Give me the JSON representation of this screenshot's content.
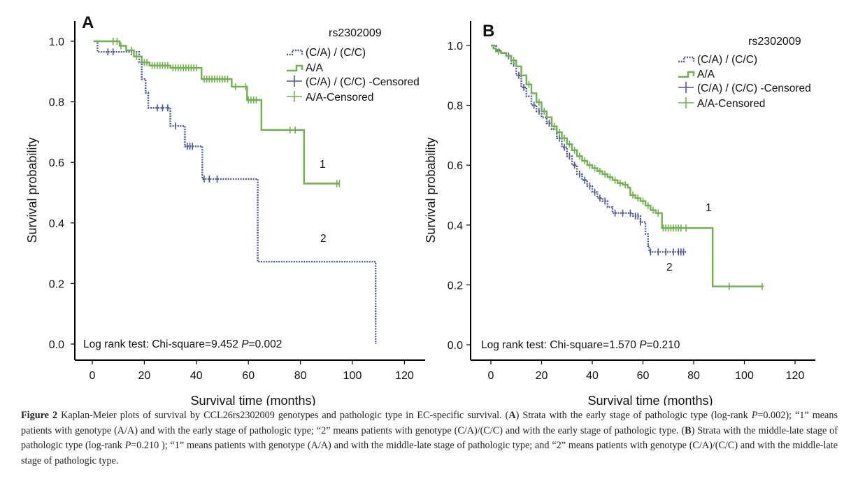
{
  "colors": {
    "group_ca_cc": "#4b55a6",
    "group_aa": "#6cb34a"
  },
  "chart_data": [
    {
      "type": "line",
      "panel_label": "A",
      "xlabel": "Survival time (months)",
      "ylabel": "Survival probability",
      "xlim": [
        0,
        120
      ],
      "ylim": [
        0,
        1
      ],
      "xticks": [
        "0",
        "20",
        "40",
        "60",
        "80",
        "100",
        "120"
      ],
      "yticks": [
        "0.0",
        "0.2",
        "0.4",
        "0.6",
        "0.8",
        "1.0"
      ],
      "legend_title": "rs2302009",
      "legend": [
        "(C/A) / (C/C)",
        "A/A",
        "(C/A) / (C/C) -Censored",
        "A/A-Censored"
      ],
      "legend_placement": "top-right",
      "annotation_prefix": "Log rank test: Chi-square=9.452 ",
      "annotation_p": "P",
      "annotation_suffix": "=0.002",
      "curve_labels": [
        "1",
        "2"
      ],
      "series": [
        {
          "name": "(C/A) / (C/C)",
          "end": 108.9,
          "steps": [
            [
              0.5,
              1.0
            ],
            [
              2,
              0.965
            ],
            [
              18,
              0.93
            ],
            [
              19,
              0.875
            ],
            [
              20.5,
              0.83
            ],
            [
              21.5,
              0.78
            ],
            [
              30,
              0.72
            ],
            [
              35.6,
              0.653
            ],
            [
              42.3,
              0.545
            ],
            [
              63.6,
              0.272
            ],
            [
              108.9,
              0.0
            ]
          ],
          "censored": [
            6,
            8,
            15,
            25,
            27,
            29,
            32,
            36.5,
            37.5,
            38.5,
            43,
            45,
            48
          ]
        },
        {
          "name": "A/A",
          "end": 95,
          "steps": [
            [
              0.5,
              1.0
            ],
            [
              10.5,
              0.985
            ],
            [
              13,
              0.97
            ],
            [
              16,
              0.95
            ],
            [
              19,
              0.93
            ],
            [
              22,
              0.92
            ],
            [
              30,
              0.912
            ],
            [
              42,
              0.875
            ],
            [
              53.6,
              0.85
            ],
            [
              59.5,
              0.806
            ],
            [
              65,
              0.707
            ],
            [
              81.4,
              0.53
            ]
          ],
          "censored": [
            8,
            9.5,
            11,
            15,
            17,
            20,
            21,
            23,
            24,
            25,
            26,
            27,
            28,
            29,
            31,
            32,
            33,
            34,
            35,
            36,
            37,
            38,
            39,
            40,
            43,
            44,
            45,
            46,
            47,
            48,
            49,
            50,
            51,
            52,
            55,
            59,
            60,
            61,
            62,
            63,
            76,
            78,
            94,
            95
          ]
        }
      ]
    },
    {
      "type": "line",
      "panel_label": "B",
      "xlabel": "Survival time (months)",
      "ylabel": "Survival probability",
      "xlim": [
        0,
        120
      ],
      "ylim": [
        0,
        1
      ],
      "xticks": [
        "0",
        "20",
        "40",
        "60",
        "80",
        "100",
        "120"
      ],
      "yticks": [
        "0.0",
        "0.2",
        "0.4",
        "0.6",
        "0.8",
        "1.0"
      ],
      "legend_title": "rs2302009",
      "legend": [
        "(C/A) / (C/C)",
        "A/A",
        "(C/A) / (C/C) -Censored",
        "A/A-Censored"
      ],
      "legend_placement": "top-right",
      "annotation_prefix": "Log rank test: Chi-square=1.570 ",
      "annotation_p": "P",
      "annotation_suffix": "=0.210",
      "curve_labels": [
        "1",
        "2"
      ],
      "series": [
        {
          "name": "(C/A) / (C/C)",
          "end": 77,
          "steps": [
            [
              0,
              1
            ],
            [
              2,
              0.985
            ],
            [
              4,
              0.975
            ],
            [
              6,
              0.965
            ],
            [
              8,
              0.94
            ],
            [
              10,
              0.9
            ],
            [
              12,
              0.86
            ],
            [
              14,
              0.83
            ],
            [
              16,
              0.8
            ],
            [
              18,
              0.78
            ],
            [
              20,
              0.76
            ],
            [
              22,
              0.74
            ],
            [
              24,
              0.72
            ],
            [
              26,
              0.69
            ],
            [
              28,
              0.66
            ],
            [
              30,
              0.63
            ],
            [
              32,
              0.6
            ],
            [
              34,
              0.57
            ],
            [
              36,
              0.55
            ],
            [
              38,
              0.53
            ],
            [
              40,
              0.51
            ],
            [
              42,
              0.49
            ],
            [
              44,
              0.48
            ],
            [
              46,
              0.46
            ],
            [
              48,
              0.44
            ],
            [
              56,
              0.43
            ],
            [
              59,
              0.41
            ],
            [
              61,
              0.37
            ],
            [
              62,
              0.33
            ],
            [
              62.5,
              0.31
            ]
          ],
          "censored": [
            7,
            9,
            11,
            13,
            17,
            19,
            23,
            27,
            29,
            31,
            33,
            35,
            37,
            39,
            41,
            43,
            45,
            49,
            52,
            55,
            57,
            58,
            59,
            63,
            66,
            69,
            72,
            74,
            75,
            76
          ]
        },
        {
          "name": "A/A",
          "end": 107.6,
          "steps": [
            [
              0,
              1
            ],
            [
              1,
              0.99
            ],
            [
              2,
              0.98
            ],
            [
              4,
              0.975
            ],
            [
              6,
              0.965
            ],
            [
              8,
              0.95
            ],
            [
              10,
              0.93
            ],
            [
              12,
              0.9
            ],
            [
              14,
              0.87
            ],
            [
              16,
              0.84
            ],
            [
              18,
              0.81
            ],
            [
              20,
              0.78
            ],
            [
              22,
              0.76
            ],
            [
              24,
              0.73
            ],
            [
              26,
              0.71
            ],
            [
              28,
              0.69
            ],
            [
              30,
              0.67
            ],
            [
              32,
              0.65
            ],
            [
              34,
              0.63
            ],
            [
              36,
              0.615
            ],
            [
              38,
              0.6
            ],
            [
              40,
              0.59
            ],
            [
              42,
              0.58
            ],
            [
              44,
              0.57
            ],
            [
              46,
              0.56
            ],
            [
              48,
              0.55
            ],
            [
              50,
              0.54
            ],
            [
              52,
              0.535
            ],
            [
              54,
              0.525
            ],
            [
              55,
              0.5
            ],
            [
              57,
              0.49
            ],
            [
              59,
              0.48
            ],
            [
              61,
              0.465
            ],
            [
              63,
              0.45
            ],
            [
              65,
              0.44
            ],
            [
              67.5,
              0.39
            ],
            [
              87.5,
              0.195
            ]
          ],
          "censored": [
            3,
            9,
            15,
            19,
            21,
            25,
            27,
            29,
            31,
            33,
            35,
            37,
            39,
            41,
            43,
            45,
            47,
            49,
            51,
            53,
            56,
            58,
            60,
            62,
            64,
            66,
            68,
            69,
            70,
            71,
            72,
            73,
            74,
            75,
            77,
            94,
            107
          ]
        }
      ]
    }
  ],
  "caption": {
    "segments": [
      {
        "text": "Figure 2",
        "style": "bold"
      },
      {
        "text": " Kaplan-Meier plots of survival by CCL26rs2302009 genotypes and pathologic type in EC-specific survival. (",
        "style": "normal"
      },
      {
        "text": "A",
        "style": "bold"
      },
      {
        "text": ") Strata with the early stage of pathologic type (log-rank ",
        "style": "normal"
      },
      {
        "text": "P",
        "style": "italic"
      },
      {
        "text": "=0.002); “1” means patients with genotype (A/A) and with the early stage of pathologic type; “2” means patients with genotype (C/A)/(C/C) and with the early stage of pathologic type. (",
        "style": "normal"
      },
      {
        "text": "B",
        "style": "bold"
      },
      {
        "text": ") Strata with the middle-late stage of pathologic type (log-rank ",
        "style": "normal"
      },
      {
        "text": "P",
        "style": "italic"
      },
      {
        "text": "=0.210 ); “1” means patients with genotype (A/A) and with the middle-late stage of pathologic type; and “2” means patients with genotype (C/A)/(C/C) and with the middle-late stage of pathologic type.",
        "style": "normal"
      }
    ]
  }
}
